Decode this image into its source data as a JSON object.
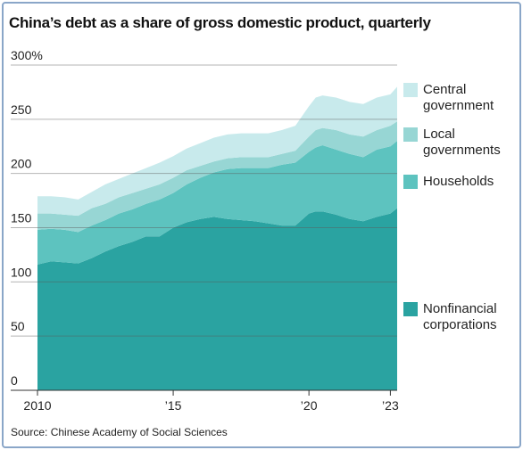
{
  "chart_data": {
    "type": "stacked-area",
    "title": "China’s debt as a share of gross domestic product, quarterly",
    "source": "Source: Chinese Academy of Social Sciences",
    "x": [
      2010,
      2010.5,
      2011,
      2011.5,
      2012,
      2012.5,
      2013,
      2013.5,
      2014,
      2014.5,
      2015,
      2015.5,
      2016,
      2016.5,
      2017,
      2017.5,
      2018,
      2018.5,
      2019,
      2019.5,
      2020,
      2020.25,
      2020.5,
      2021,
      2021.5,
      2022,
      2022.5,
      2023,
      2023.25
    ],
    "series": [
      {
        "name": "Nonfinancial corporations",
        "color": "#2aa3a1",
        "values": [
          116,
          119,
          118,
          117,
          122,
          128,
          133,
          137,
          142,
          142,
          150,
          155,
          158,
          160,
          158,
          157,
          156,
          154,
          152,
          152,
          163,
          165,
          165,
          162,
          158,
          156,
          160,
          163,
          168
        ]
      },
      {
        "name": "Households",
        "color": "#5dc3bf",
        "values": [
          32,
          30,
          30,
          29,
          30,
          29,
          30,
          30,
          30,
          34,
          32,
          35,
          38,
          41,
          46,
          48,
          49,
          51,
          56,
          58,
          57,
          59,
          61,
          60,
          60,
          59,
          62,
          62,
          62
        ]
      },
      {
        "name": "Local governments",
        "color": "#97d6d4",
        "values": [
          15,
          14,
          14,
          15,
          16,
          15,
          15,
          15,
          14,
          14,
          14,
          13,
          11,
          10,
          10,
          10,
          10,
          10,
          10,
          11,
          14,
          16,
          16,
          18,
          18,
          19,
          18,
          19,
          18
        ]
      },
      {
        "name": "Central government",
        "color": "#c8eaec",
        "values": [
          16,
          16,
          16,
          15,
          15,
          18,
          17,
          18,
          19,
          20,
          20,
          20,
          21,
          22,
          22,
          22,
          22,
          22,
          22,
          23,
          28,
          30,
          30,
          30,
          30,
          30,
          30,
          29,
          32
        ]
      }
    ],
    "xlim": [
      2010,
      2023.25
    ],
    "ylim": [
      0,
      300
    ],
    "xticks": [
      2010,
      {
        "value": 2015,
        "label": "’15"
      },
      {
        "value": 2020,
        "label": "’20"
      },
      {
        "value": 2023,
        "label": "’23"
      }
    ],
    "yticks": [
      0,
      50,
      100,
      150,
      200,
      250,
      {
        "value": 300,
        "label": "300%"
      }
    ],
    "grid": true
  }
}
